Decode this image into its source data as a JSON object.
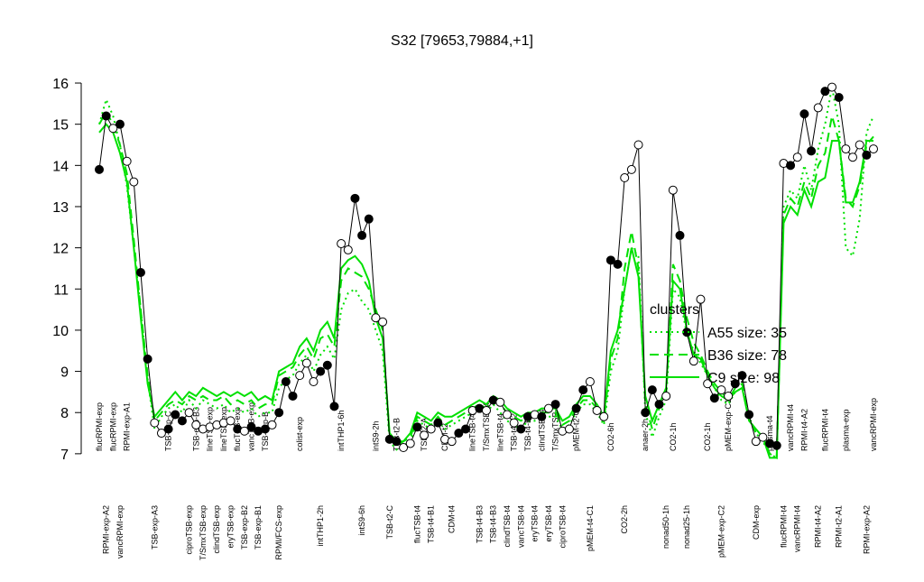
{
  "chart_data": {
    "type": "line",
    "title": "S32 [79653,79884,+1]",
    "categories": [
      "flucRPMI-exp",
      "RPMI-exp-A2",
      "flucRPMI-exp",
      "vancRPMI-exp",
      "RPMI-exp-A1",
      null,
      null,
      null,
      "TSB-exp-A3",
      null,
      "TSB-exp-C",
      null,
      null,
      "ciproTSB-exp",
      "TSB-exp-B3",
      "T/SmxTSB-exp",
      "lineTSB-exp",
      "clindTSB-exp",
      "lineTSB-exp",
      "eryTSB-exp",
      "flucTSB-exp",
      "TSB-exp-B2",
      "vancTSB-exp",
      "TSB-exp-B1",
      "TSB-exp-B",
      null,
      "RPMI/FCS-exp",
      null,
      null,
      "colist-exp",
      null,
      null,
      "intTHP1-2h",
      null,
      null,
      "intTHP1-6h",
      null,
      null,
      "intS9-6h",
      null,
      "intS9-2h",
      null,
      "TSB-t2-C",
      "TSB-t2-B",
      null,
      null,
      "flucTSB-t4",
      "TSB-t2-A",
      "TSB-t4-B1",
      null,
      "CDM-t2",
      "CDM-t4",
      null,
      null,
      "lineTSB-t4",
      "TSB-t4-B3",
      "T/SmxTSB-t4",
      "TSB-t4-B3",
      "lineTSB-t4",
      "clindTSB-t4",
      "TSB-t4-B2",
      "vancTSB-t4",
      "TSB-t4-B",
      "eryTSB-t4",
      "clindTSB-t4",
      "eryTSB-t4",
      "T/SmxTSB-t4",
      "ciproTSB-t4",
      null,
      "pMEM-t2-C1",
      null,
      "pMEM-t4-C1",
      null,
      null,
      "CO2-6h",
      null,
      "CO2-2h",
      null,
      null,
      "anaer-2h",
      null,
      null,
      "nonad50-1h",
      "CO2-1h",
      null,
      "nonad25-1h",
      null,
      null,
      "CO2-1h",
      null,
      "pMEM-exp-C2",
      "pMEM-exp-C1",
      null,
      null,
      null,
      "CDM-exp",
      null,
      "plasma-t4",
      null,
      "flucRPMI-t4",
      "vancRPMI-t4",
      "vancRPMI-t4",
      "RPMI-t4-A2",
      null,
      "RPMI-t4-A2",
      "flucRPMI-t4",
      null,
      "RPMI-t2-A1",
      "plasma-exp",
      null,
      null,
      "RPMI-exp-A2",
      "vancRPMI-exp"
    ],
    "values": [
      13.9,
      15.2,
      14.9,
      15.0,
      14.1,
      13.6,
      11.4,
      9.3,
      7.75,
      7.5,
      7.6,
      7.95,
      7.8,
      8.0,
      7.7,
      7.6,
      7.65,
      7.7,
      7.75,
      7.8,
      7.6,
      7.55,
      7.65,
      7.55,
      7.6,
      7.7,
      8.0,
      8.75,
      8.4,
      8.9,
      9.2,
      8.75,
      9.0,
      9.15,
      8.15,
      12.1,
      11.95,
      13.2,
      12.3,
      12.7,
      10.3,
      10.2,
      7.35,
      7.3,
      7.15,
      7.25,
      7.65,
      7.45,
      7.6,
      7.75,
      7.35,
      7.3,
      7.5,
      7.6,
      8.05,
      8.1,
      8.05,
      8.3,
      8.25,
      7.95,
      7.75,
      7.6,
      7.9,
      7.95,
      7.9,
      8.1,
      8.2,
      7.55,
      7.6,
      8.1,
      8.55,
      8.75,
      8.05,
      7.9,
      11.7,
      11.6,
      13.7,
      13.9,
      14.5,
      8.0,
      8.55,
      8.2,
      8.4,
      13.4,
      12.3,
      9.95,
      9.25,
      10.75,
      8.7,
      8.35,
      8.55,
      8.4,
      8.7,
      8.9,
      7.95,
      7.3,
      7.4,
      7.25,
      7.2,
      14.05,
      14.0,
      14.2,
      15.25,
      14.35,
      15.4,
      15.8,
      15.9,
      15.65,
      14.4,
      14.2,
      14.5,
      14.25,
      14.4
    ],
    "color": "black",
    "marker_fill": [
      "black",
      "black",
      "white",
      "black",
      "white",
      "white",
      "black",
      "black",
      "white",
      "white",
      "black",
      "black",
      "black",
      "white",
      "white",
      "white",
      "white",
      "white",
      "white",
      "white",
      "black",
      "white",
      "black",
      "black",
      "black",
      "white",
      "black",
      "black",
      "black",
      "white",
      "white",
      "white",
      "black",
      "black",
      "black",
      "white",
      "white",
      "black",
      "black",
      "black",
      "white",
      "white",
      "black",
      "black",
      "white",
      "white",
      "black",
      "white",
      "white",
      "black",
      "white",
      "white",
      "black",
      "black",
      "white",
      "black",
      "white",
      "black",
      "white",
      "white",
      "white",
      "black",
      "black",
      "white",
      "black",
      "white",
      "black",
      "white",
      "white",
      "black",
      "black",
      "white",
      "white",
      "white",
      "black",
      "black",
      "white",
      "white",
      "white",
      "black",
      "black",
      "black",
      "white",
      "white",
      "black",
      "black",
      "white",
      "white",
      "white",
      "black",
      "white",
      "white",
      "black",
      "black",
      "black",
      "white",
      "white",
      "black",
      "black",
      "white",
      "black",
      "white",
      "black",
      "black",
      "white",
      "black",
      "white",
      "black",
      "white",
      "white",
      "white",
      "black",
      "white"
    ],
    "series": [
      {
        "name": "A55 size: 35",
        "color": "#00e000",
        "dash": "dotted",
        "values": [
          15.0,
          15.6,
          15.2,
          14.5,
          13.5,
          12.0,
          10.5,
          8.8,
          7.6,
          7.9,
          8.1,
          8.2,
          8.0,
          8.3,
          8.1,
          8.3,
          8.2,
          8.1,
          8.2,
          8.0,
          8.1,
          8.0,
          8.1,
          7.9,
          8.0,
          8.0,
          8.6,
          8.8,
          8.9,
          9.2,
          9.4,
          9.0,
          9.4,
          9.6,
          9.3,
          10.5,
          10.9,
          11.0,
          10.7,
          10.5,
          10.0,
          9.5,
          7.3,
          7.1,
          7.2,
          7.3,
          7.8,
          7.7,
          7.6,
          7.8,
          7.6,
          7.7,
          7.8,
          7.9,
          8.0,
          8.1,
          8.0,
          8.2,
          8.0,
          7.8,
          7.7,
          7.6,
          7.8,
          7.8,
          7.9,
          7.9,
          7.9,
          7.6,
          7.7,
          8.0,
          8.2,
          8.2,
          8.0,
          7.7,
          9.0,
          9.5,
          11.0,
          12.0,
          11.8,
          8.0,
          7.4,
          7.9,
          8.3,
          11.0,
          10.8,
          9.9,
          9.5,
          9.2,
          8.9,
          8.6,
          8.3,
          8.2,
          8.5,
          8.6,
          7.9,
          7.5,
          7.3,
          7.0,
          6.9,
          13.0,
          13.4,
          13.2,
          14.0,
          13.4,
          14.4,
          15.0,
          15.9,
          15.0,
          12.0,
          11.8,
          12.7,
          14.8,
          15.2
        ]
      },
      {
        "name": "B36 size: 78",
        "color": "#00e000",
        "dash": "dashed",
        "values": [
          15.0,
          15.3,
          15.0,
          14.5,
          13.8,
          12.2,
          10.5,
          8.9,
          7.8,
          8.0,
          8.2,
          8.3,
          8.2,
          8.4,
          8.3,
          8.4,
          8.3,
          8.3,
          8.4,
          8.2,
          8.3,
          8.2,
          8.3,
          8.1,
          8.2,
          8.2,
          8.9,
          9.0,
          9.1,
          9.4,
          9.6,
          9.3,
          9.8,
          9.9,
          9.6,
          11.2,
          11.5,
          11.4,
          11.3,
          11.0,
          10.5,
          10.0,
          7.4,
          7.2,
          7.3,
          7.4,
          7.9,
          7.8,
          7.7,
          7.9,
          7.7,
          7.8,
          7.9,
          8.0,
          8.1,
          8.2,
          8.1,
          8.3,
          8.2,
          8.0,
          7.9,
          7.8,
          7.9,
          7.9,
          8.0,
          8.0,
          8.0,
          7.7,
          7.8,
          8.1,
          8.3,
          8.3,
          8.1,
          7.8,
          9.3,
          9.8,
          11.5,
          12.4,
          11.5,
          8.2,
          7.6,
          8.1,
          8.4,
          11.6,
          11.2,
          10.3,
          9.7,
          9.4,
          9.0,
          8.7,
          8.5,
          8.3,
          8.6,
          8.7,
          7.9,
          7.5,
          7.4,
          7.0,
          6.9,
          12.8,
          13.2,
          13.0,
          13.6,
          13.2,
          14.0,
          14.3,
          15.2,
          14.6,
          13.2,
          13.0,
          13.5,
          14.5,
          14.7
        ]
      },
      {
        "name": "C9 size: 98",
        "color": "#00e000",
        "dash": "solid",
        "values": [
          14.8,
          15.0,
          14.8,
          14.3,
          13.6,
          12.0,
          10.3,
          8.7,
          7.9,
          8.1,
          8.3,
          8.5,
          8.3,
          8.5,
          8.4,
          8.6,
          8.5,
          8.4,
          8.5,
          8.4,
          8.5,
          8.4,
          8.5,
          8.3,
          8.4,
          8.3,
          9.0,
          9.1,
          9.2,
          9.6,
          9.8,
          9.5,
          10.0,
          10.2,
          9.8,
          11.5,
          11.7,
          11.8,
          11.6,
          11.2,
          10.3,
          9.8,
          7.5,
          7.3,
          7.3,
          7.5,
          8.0,
          7.9,
          7.8,
          8.0,
          7.9,
          7.9,
          8.0,
          8.1,
          8.2,
          8.3,
          8.2,
          8.4,
          8.3,
          8.1,
          8.0,
          7.9,
          8.0,
          8.0,
          8.1,
          8.1,
          8.1,
          7.8,
          7.9,
          8.2,
          8.4,
          8.4,
          8.2,
          7.9,
          9.5,
          10.0,
          11.0,
          12.0,
          11.3,
          8.4,
          7.8,
          8.2,
          8.6,
          11.2,
          11.0,
          10.0,
          9.4,
          9.3,
          8.9,
          8.6,
          8.4,
          8.3,
          8.5,
          8.6,
          7.8,
          7.6,
          7.4,
          6.9,
          6.9,
          12.6,
          13.0,
          12.8,
          13.4,
          13.0,
          13.6,
          13.7,
          14.6,
          14.6,
          13.1,
          13.1,
          13.6,
          14.6,
          14.6
        ]
      }
    ],
    "legend_title": "clusters",
    "legend": "right",
    "ylim": [
      6.8,
      16.2
    ],
    "yticks": [
      7,
      8,
      9,
      10,
      11,
      12,
      13,
      14,
      15,
      16
    ]
  }
}
